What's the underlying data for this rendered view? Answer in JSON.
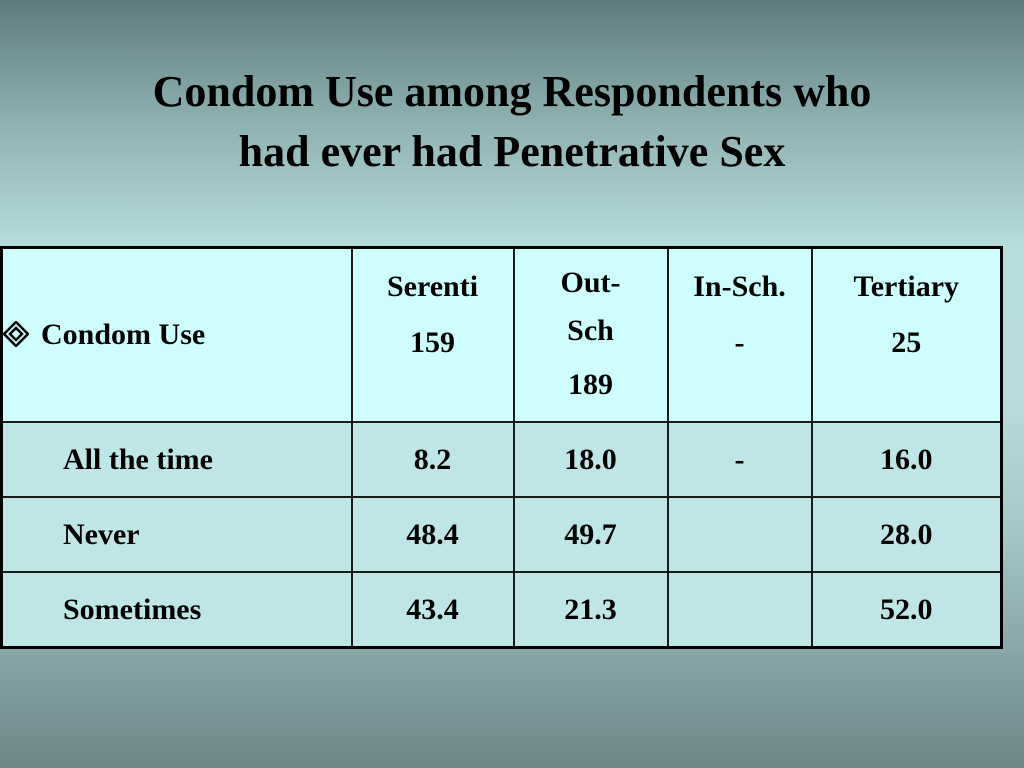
{
  "slide": {
    "title_lines": [
      "Condom Use among Respondents who",
      "had ever had Penetrative Sex"
    ]
  },
  "table": {
    "header_label": "Condom Use",
    "bullet_icon": "diamond-bullet-icon",
    "columns": [
      {
        "lines": [
          "Serenti",
          "159"
        ]
      },
      {
        "lines": [
          "Out-",
          "Sch",
          "189"
        ]
      },
      {
        "lines": [
          "In-Sch.",
          "-"
        ]
      },
      {
        "lines": [
          "Tertiary",
          "25"
        ]
      }
    ],
    "rows": [
      {
        "label": "All the time",
        "values": [
          "8.2",
          "18.0",
          "-",
          "16.0"
        ]
      },
      {
        "label": "Never",
        "values": [
          "48.4",
          "49.7",
          "",
          "28.0"
        ]
      },
      {
        "label": "Sometimes",
        "values": [
          "43.4",
          "21.3",
          "",
          "52.0"
        ]
      }
    ]
  }
}
